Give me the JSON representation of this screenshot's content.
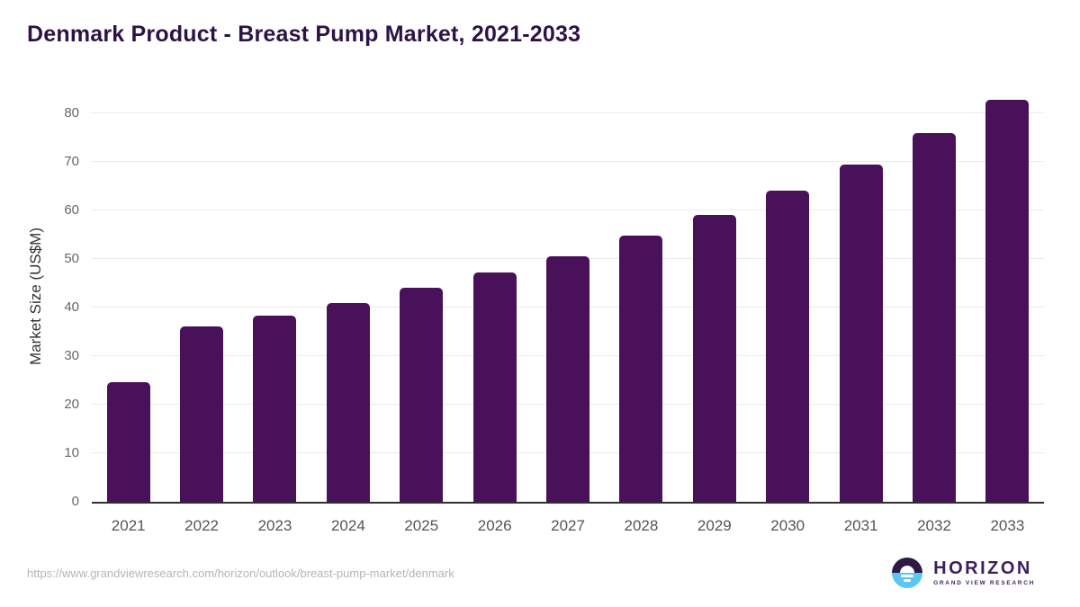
{
  "title": "Denmark Product - Breast Pump Market, 2021-2033",
  "chart_data": {
    "type": "bar",
    "title": "Denmark Product - Breast Pump Market, 2021-2033",
    "categories": [
      "2021",
      "2022",
      "2023",
      "2024",
      "2025",
      "2026",
      "2027",
      "2028",
      "2029",
      "2030",
      "2031",
      "2032",
      "2033"
    ],
    "values": [
      24.6,
      36.2,
      38.4,
      41.0,
      44.1,
      47.2,
      50.6,
      54.9,
      59.0,
      64.0,
      69.5,
      75.9,
      82.8
    ],
    "xlabel": "",
    "ylabel": "Market Size (US$M)",
    "ylim": [
      0,
      85
    ],
    "yticks": [
      0,
      10,
      20,
      30,
      40,
      50,
      60,
      70,
      80
    ],
    "grid": true,
    "legend": "none",
    "bar_color": "#491159"
  },
  "footer": {
    "source_url": "https://www.grandviewresearch.com/horizon/outlook/breast-pump-market/denmark",
    "logo_title": "HORIZON",
    "logo_subtitle": "GRAND VIEW RESEARCH"
  },
  "colors": {
    "title": "#2e1247",
    "bar": "#491159",
    "grid": "#ebebeb",
    "axis": "#2f2f2f",
    "y_tick": "#666666",
    "x_label": "#555555",
    "y_axis_title": "#333333",
    "url": "#b5b5b5",
    "logo_dark": "#2d1a45",
    "logo_blue": "#5bc6f0",
    "logo_text": "#3b1f5e"
  }
}
